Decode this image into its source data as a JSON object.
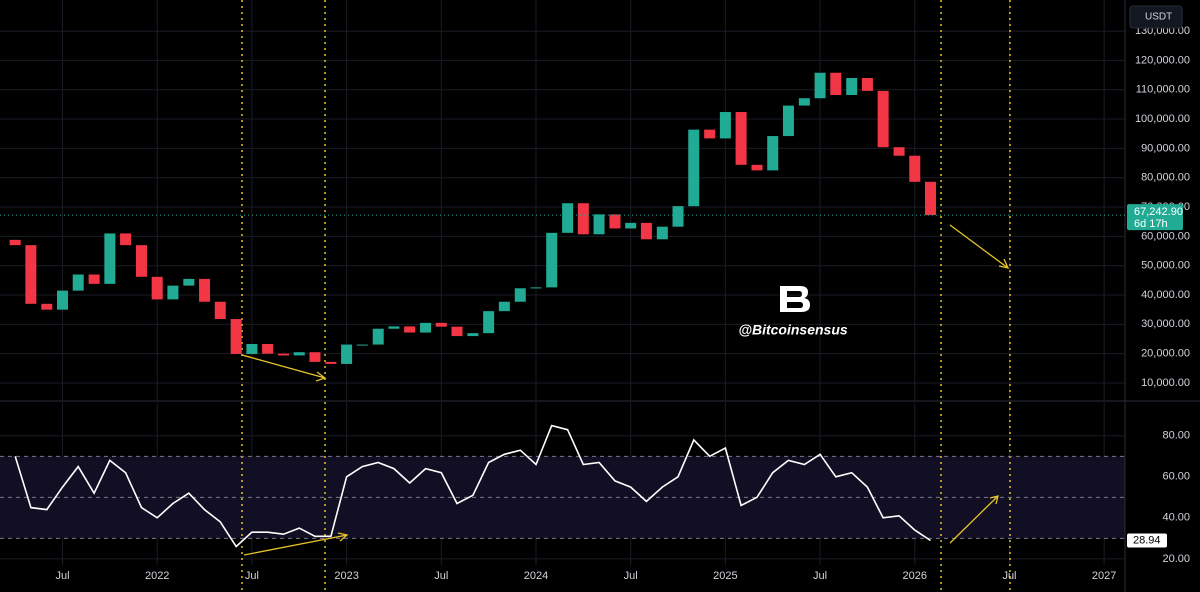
{
  "chart_data": [
    {
      "type": "candlestick",
      "currency": "USDT",
      "watermark": "@Bitcoinsensus",
      "up_color": "#22ab94",
      "down_color": "#f23645",
      "grid": true,
      "xlim": [
        2021.17,
        2027.11
      ],
      "ylim": [
        4200,
        140600
      ],
      "yticks": [
        {
          "value": 10000,
          "label": "10,000.00"
        },
        {
          "value": 20000,
          "label": "20,000.00"
        },
        {
          "value": 30000,
          "label": "30,000.00"
        },
        {
          "value": 40000,
          "label": "40,000.00"
        },
        {
          "value": 50000,
          "label": "50,000.00"
        },
        {
          "value": 60000,
          "label": "60,000.00"
        },
        {
          "value": 70000,
          "label": "70,000.00"
        },
        {
          "value": 80000,
          "label": "80,000.00"
        },
        {
          "value": 90000,
          "label": "90,000.00"
        },
        {
          "value": 100000,
          "label": "100,000.00"
        },
        {
          "value": 110000,
          "label": "110,000.00"
        },
        {
          "value": 120000,
          "label": "120,000.00"
        },
        {
          "value": 130000,
          "label": "130,000.00"
        }
      ],
      "x": [
        2021.25,
        2021.333,
        2021.417,
        2021.5,
        2021.583,
        2021.667,
        2021.75,
        2021.833,
        2021.917,
        2022.0,
        2022.083,
        2022.167,
        2022.25,
        2022.333,
        2022.417,
        2022.5,
        2022.583,
        2022.667,
        2022.75,
        2022.833,
        2022.917,
        2023.0,
        2023.083,
        2023.167,
        2023.25,
        2023.333,
        2023.417,
        2023.5,
        2023.583,
        2023.667,
        2023.75,
        2023.833,
        2023.917,
        2024.0,
        2024.083,
        2024.167,
        2024.25,
        2024.333,
        2024.417,
        2024.5,
        2024.583,
        2024.667,
        2024.75,
        2024.833,
        2024.917,
        2025.0,
        2025.083,
        2025.167,
        2025.25,
        2025.333,
        2025.417,
        2025.5,
        2025.583,
        2025.667,
        2025.75,
        2025.833,
        2025.917,
        2026.0,
        2026.083
      ],
      "open": [
        58800,
        57000,
        37000,
        35000,
        41500,
        47000,
        43800,
        61000,
        57000,
        46200,
        38500,
        43200,
        45500,
        37700,
        31800,
        19900,
        23300,
        20000,
        19400,
        20500,
        17200,
        16500,
        23100,
        23100,
        28500,
        29300,
        27200,
        30500,
        29200,
        26000,
        27000,
        34500,
        37700,
        42300,
        42600,
        61200,
        71300,
        60700,
        67500,
        62700,
        64600,
        59000,
        63300,
        70300,
        96400,
        93400,
        102400,
        84400,
        82500,
        94200,
        104600,
        107100,
        115800,
        108200,
        114000,
        109600,
        90400,
        87500,
        78600
      ],
      "close": [
        57000,
        37000,
        35000,
        41500,
        47000,
        43800,
        61000,
        57000,
        46200,
        38500,
        43200,
        45500,
        37700,
        31800,
        19900,
        23300,
        20000,
        19400,
        20500,
        17200,
        16500,
        23100,
        23100,
        28500,
        29300,
        27200,
        30500,
        29200,
        26000,
        27000,
        34500,
        37700,
        42300,
        42600,
        61200,
        71300,
        60700,
        67500,
        62700,
        64600,
        59000,
        63300,
        70300,
        96400,
        93400,
        102400,
        84400,
        82500,
        94200,
        104600,
        107100,
        115800,
        108200,
        114000,
        109600,
        90400,
        87500,
        78600,
        67242.9
      ],
      "last_price": {
        "value": 67242.9,
        "label": "67,242.90"
      },
      "countdown": "6d 17h"
    },
    {
      "type": "line",
      "color": "#ffffff",
      "grid": true,
      "band_color": "#120f24",
      "xlim": [
        2021.17,
        2027.11
      ],
      "ylim": [
        17,
        96.5
      ],
      "xticks": [
        {
          "value": 2021.5,
          "label": "Jul"
        },
        2022,
        {
          "value": 2022.5,
          "label": "Jul"
        },
        2023,
        {
          "value": 2023.5,
          "label": "Jul"
        },
        2024,
        {
          "value": 2024.5,
          "label": "Jul"
        },
        2025,
        {
          "value": 2025.5,
          "label": "Jul"
        },
        2026,
        {
          "value": 2026.5,
          "label": "Jul"
        },
        2027
      ],
      "yticks": [
        {
          "value": 20,
          "label": "20.00"
        },
        {
          "value": 40,
          "label": "40.00"
        },
        {
          "value": 60,
          "label": "60.00"
        },
        {
          "value": 80,
          "label": "80.00"
        }
      ],
      "levels": [
        30,
        50,
        70
      ],
      "x": [
        2021.25,
        2021.333,
        2021.417,
        2021.5,
        2021.583,
        2021.667,
        2021.75,
        2021.833,
        2021.917,
        2022.0,
        2022.083,
        2022.167,
        2022.25,
        2022.333,
        2022.417,
        2022.5,
        2022.583,
        2022.667,
        2022.75,
        2022.833,
        2022.917,
        2023.0,
        2023.083,
        2023.167,
        2023.25,
        2023.333,
        2023.417,
        2023.5,
        2023.583,
        2023.667,
        2023.75,
        2023.833,
        2023.917,
        2024.0,
        2024.083,
        2024.167,
        2024.25,
        2024.333,
        2024.417,
        2024.5,
        2024.583,
        2024.667,
        2024.75,
        2024.833,
        2024.917,
        2025.0,
        2025.083,
        2025.167,
        2025.25,
        2025.333,
        2025.417,
        2025.5,
        2025.583,
        2025.667,
        2025.75,
        2025.833,
        2025.917,
        2026.0,
        2026.083
      ],
      "values": [
        70,
        45,
        44,
        55,
        65,
        52,
        68,
        62,
        45,
        40,
        47,
        52,
        44,
        38,
        26,
        33,
        33,
        32,
        35,
        31,
        31,
        60,
        65,
        67,
        64,
        57,
        64,
        62,
        47,
        51,
        67,
        71,
        73,
        66,
        85,
        83,
        66,
        67,
        58,
        55,
        48,
        55,
        60,
        78,
        70,
        74,
        46,
        50,
        62,
        68,
        66,
        71,
        60,
        62,
        55,
        40,
        41,
        34,
        28.94
      ],
      "last_value": {
        "value": 28.94,
        "label": "28.94"
      }
    }
  ]
}
